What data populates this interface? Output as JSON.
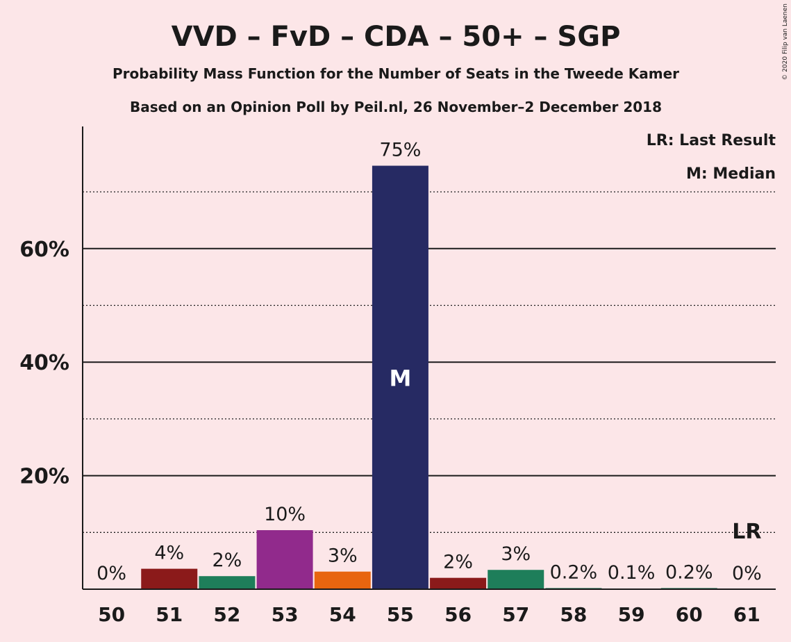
{
  "chart_data": {
    "type": "bar",
    "title": "VVD – FvD – CDA – 50+ – SGP",
    "subtitle": "Probability Mass Function for the Number of Seats in the Tweede Kamer",
    "subtitle2": "Based on an Opinion Poll by Peil.nl, 26 November–2 December 2018",
    "copyright": "© 2020 Filip van Laenen",
    "xlabel": "",
    "ylabel": "",
    "categories": [
      "50",
      "51",
      "52",
      "53",
      "54",
      "55",
      "56",
      "57",
      "58",
      "59",
      "60",
      "61"
    ],
    "values": [
      0,
      3.6,
      2.3,
      10.4,
      3.1,
      74.6,
      2.0,
      3.4,
      0.2,
      0.1,
      0.2,
      0
    ],
    "labels": [
      "0%",
      "4%",
      "2%",
      "10%",
      "3%",
      "75%",
      "2%",
      "3%",
      "0.2%",
      "0.1%",
      "0.2%",
      "0%"
    ],
    "colors": [
      "#1e7e5a",
      "#8b1a1a",
      "#1e7e5a",
      "#912a8c",
      "#e8650f",
      "#262a63",
      "#8b1a1a",
      "#1e7e5a",
      "#1e7e5a",
      "#1e7e5a",
      "#1e7e5a",
      "#1e7e5a"
    ],
    "ylim": [
      0,
      80
    ],
    "yticks": [
      20,
      40,
      60
    ],
    "ytick_labels": [
      "20%",
      "40%",
      "60%"
    ],
    "minor_gridlines": [
      10,
      30,
      50,
      70
    ],
    "median_category": "55",
    "median_marker": "M",
    "last_result_category": "61",
    "last_result_marker": "LR",
    "legend": [
      "LR: Last Result",
      "M: Median"
    ],
    "legend_position": "top-right",
    "grid": true
  }
}
